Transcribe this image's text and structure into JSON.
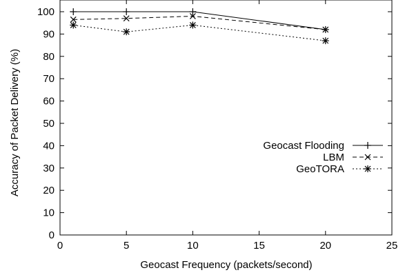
{
  "chart_data": {
    "type": "line",
    "xlabel": "Geocast Frequency (packets/second)",
    "ylabel": "Accuracy of Packet Delivery (%)",
    "xlim": [
      0,
      25
    ],
    "ylim": [
      0,
      100
    ],
    "xticks": [
      0,
      5,
      10,
      15,
      20,
      25
    ],
    "yticks": [
      0,
      10,
      20,
      30,
      40,
      50,
      60,
      70,
      80,
      90,
      100
    ],
    "grid": false,
    "legend_position": "right",
    "x": [
      1,
      5,
      10,
      20
    ],
    "series": [
      {
        "name": "Geocast Flooding",
        "values": [
          100,
          100,
          100,
          92
        ],
        "dash": "solid",
        "marker": "plus"
      },
      {
        "name": "LBM",
        "values": [
          96.5,
          97,
          98,
          92
        ],
        "dash": "dashed",
        "marker": "cross"
      },
      {
        "name": "GeoTORA",
        "values": [
          94,
          91,
          94,
          87
        ],
        "dash": "dotted",
        "marker": "star"
      }
    ]
  }
}
